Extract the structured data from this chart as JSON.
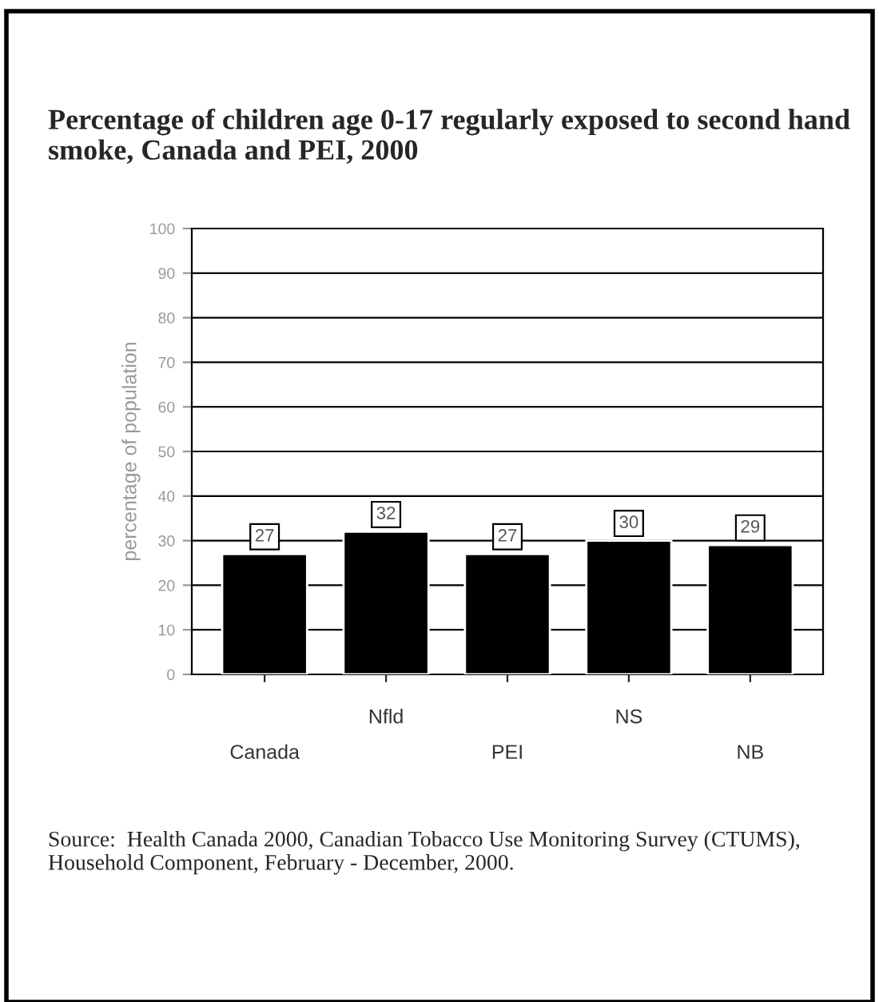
{
  "chart_data": {
    "type": "bar",
    "title": "Percentage of children age 0-17 regularly exposed to second hand smoke, Canada and PEI, 2000",
    "ylabel": "percentage of population",
    "categories": [
      "Canada",
      "Nfld",
      "PEI",
      "NS",
      "NB"
    ],
    "values": [
      27,
      32,
      27,
      30,
      29
    ],
    "color": "#000000",
    "ylim": [
      0,
      100
    ],
    "yticks": [
      0,
      10,
      20,
      30,
      40,
      50,
      60,
      70,
      80,
      90,
      100
    ],
    "grid": "y",
    "data_labels": true,
    "annotations": [
      "Source:  Health Canada 2000, Canadian Tobacco Use Monitoring Survey (CTUMS), Household Component, February - December, 2000."
    ]
  }
}
